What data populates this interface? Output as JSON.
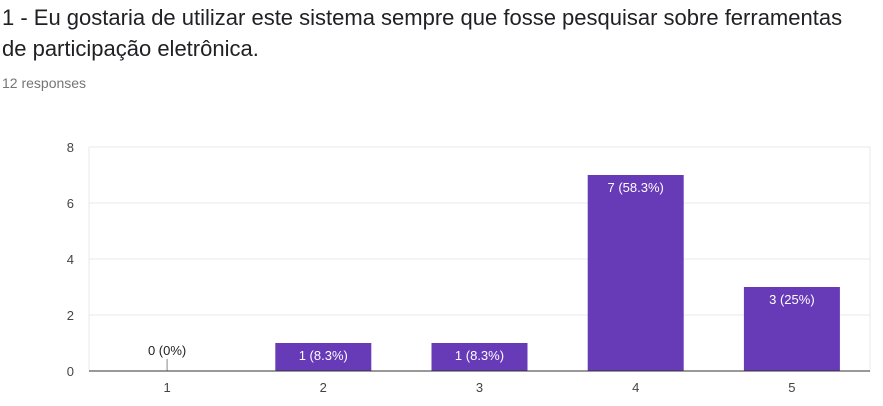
{
  "question": {
    "title": "1 - Eu gostaria de utilizar este sistema sempre que fosse pesquisar sobre ferramentas de participação eletrônica.",
    "responses": "12 responses"
  },
  "colors": {
    "bar": "#673ab7",
    "grid": "#e8e8e8",
    "axis": "#333333"
  },
  "chart_data": {
    "type": "bar",
    "title": "",
    "xlabel": "",
    "ylabel": "",
    "categories": [
      "1",
      "2",
      "3",
      "4",
      "5"
    ],
    "values": [
      0,
      1,
      1,
      7,
      3
    ],
    "data_labels": [
      "0 (0%)",
      "1 (8.3%)",
      "1 (8.3%)",
      "7 (58.3%)",
      "3 (25%)"
    ],
    "ylim": [
      0,
      8
    ],
    "yticks": [
      0,
      2,
      4,
      6,
      8
    ],
    "grid": true
  }
}
